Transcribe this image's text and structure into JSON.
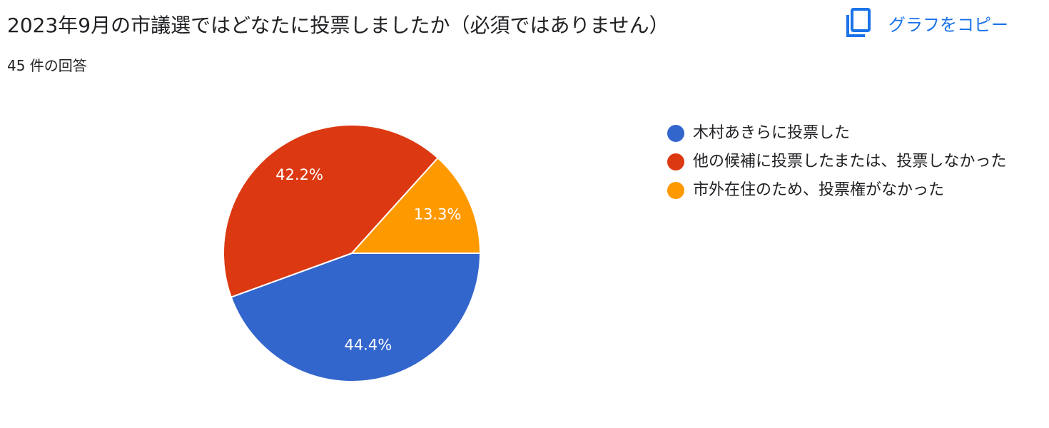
{
  "header": {
    "title": "2023年9月の市議選ではどなたに投票しましたか（必須ではありません）",
    "responses": "45 件の回答",
    "copy_label": "グラフをコピー"
  },
  "chart_data": {
    "type": "pie",
    "categories": [
      "木村あきらに投票した",
      "他の候補に投票したまたは、投票しなかった",
      "市外在住のため、投票権がなかった"
    ],
    "values": [
      44.4,
      42.2,
      13.3
    ],
    "value_labels": [
      "44.4%",
      "42.2%",
      "13.3%"
    ],
    "colors": [
      "#3366cc",
      "#dc3912",
      "#ff9900"
    ],
    "legend_position": "right"
  }
}
